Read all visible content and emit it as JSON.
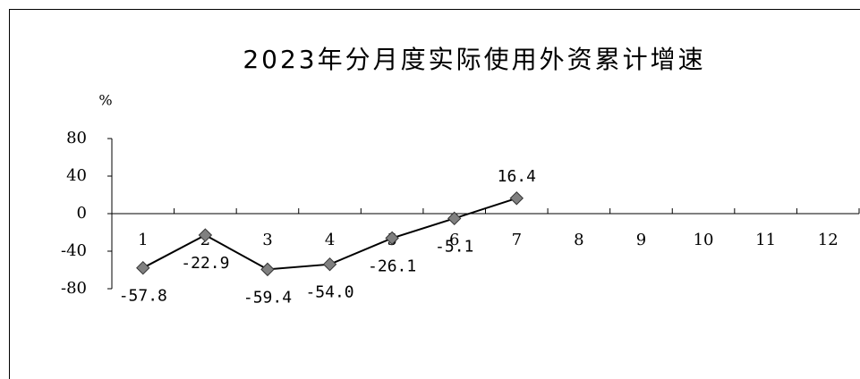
{
  "chart_data": {
    "type": "line",
    "title": "2023年分月度实际使用外资累计增速",
    "y_label": "%",
    "categories": [
      "1",
      "2",
      "3",
      "4",
      "5",
      "6",
      "7",
      "8",
      "9",
      "10",
      "11",
      "12"
    ],
    "series": [
      {
        "name": "增速",
        "color": "#000000",
        "marker_color": "#808080",
        "values": [
          -57.8,
          -22.9,
          -59.4,
          -54.0,
          -26.1,
          -5.1,
          16.4,
          null,
          null,
          null,
          null,
          null
        ],
        "value_labels": [
          "-57.8",
          "-22.9",
          "-59.4",
          "-54.0",
          "-26.1",
          "-5.1",
          "16.4",
          null,
          null,
          null,
          null,
          null
        ]
      }
    ],
    "ylim": [
      -80,
      80
    ],
    "yticks": [
      -80,
      -40,
      0,
      40,
      80
    ],
    "grid": false
  }
}
